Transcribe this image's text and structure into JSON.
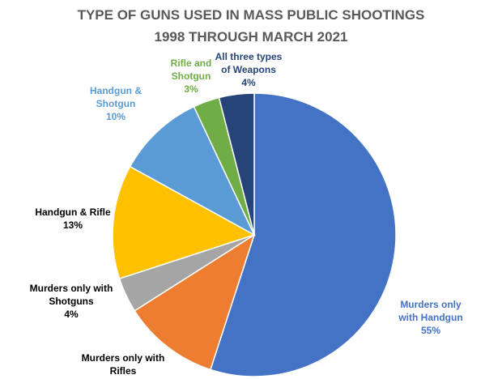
{
  "chart_data": {
    "type": "pie",
    "title": "TYPE OF GUNS USED IN MASS PUBLIC SHOOTINGS",
    "subtitle": "1998 THROUGH MARCH 2021",
    "categories": [
      "Murders only with Handgun",
      "Murders only with Rifles",
      "Murders only with Shotguns",
      "Handgun & Rifle",
      "Handgun & Shotgun",
      "Rifle and Shotgun",
      "All three types of Weapons"
    ],
    "values": [
      55,
      11,
      4,
      13,
      10,
      3,
      4
    ],
    "value_labels": [
      "55%",
      null,
      "4%",
      "13%",
      "10%",
      "3%",
      "4%"
    ],
    "colors": [
      "#4472c4",
      "#ed7d31",
      "#a5a5a5",
      "#ffc000",
      "#5b9bd5",
      "#70ad47",
      "#264478"
    ],
    "label_colors": [
      "#4472c4",
      "#000000",
      "#000000",
      "#000000",
      "#5b9bd5",
      "#70ad47",
      "#264478"
    ]
  }
}
